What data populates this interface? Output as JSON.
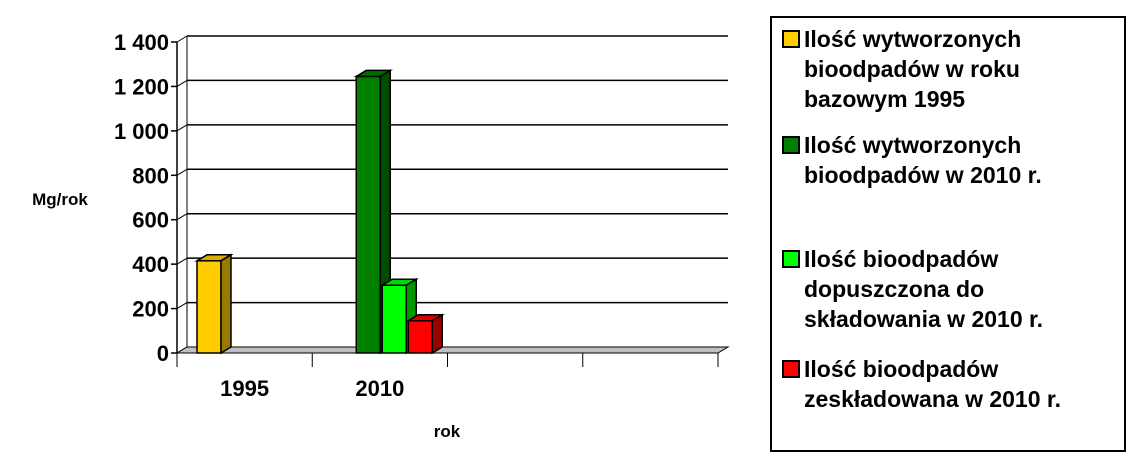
{
  "chart_data": {
    "type": "bar",
    "title": "",
    "xlabel": "rok",
    "ylabel": "Mg/rok",
    "ylim": [
      0,
      1400
    ],
    "yticks": [
      0,
      200,
      400,
      600,
      800,
      1000,
      1200,
      1400
    ],
    "ytick_labels": [
      "0",
      "200",
      "400",
      "600",
      "800",
      "1 000",
      "1 200",
      "1 400"
    ],
    "categories": [
      "1995",
      "2010",
      "",
      ""
    ],
    "grid": true,
    "legend_position": "right",
    "series": [
      {
        "name": "Ilość wytworzonych bioodpadów w roku bazowym 1995",
        "color": "#ffcc00",
        "values": [
          415,
          null,
          null,
          null
        ]
      },
      {
        "name": "Ilość wytworzonych bioodpadów w 2010 r.",
        "color": "#008000",
        "values": [
          null,
          1245,
          null,
          null
        ]
      },
      {
        "name": "Ilość bioodpadów dopuszczona do składowania w 2010 r.",
        "color": "#00ff00",
        "values": [
          null,
          305,
          null,
          null
        ]
      },
      {
        "name": "Ilość bioodpadów zeskładowana w 2010 r.",
        "color": "#ff0000",
        "values": [
          null,
          145,
          null,
          null
        ]
      }
    ]
  },
  "legend": {
    "items": [
      {
        "label": "Ilość wytworzonych\nbioodpadów w roku\nbazowym 1995",
        "color": "#ffcc00"
      },
      {
        "label": "Ilość wytworzonych\nbioodpadów w 2010 r.",
        "color": "#008000"
      },
      {
        "label": "Ilość bioodpadów\ndopuszczona do\nskładowania w 2010 r.",
        "color": "#00ff00"
      },
      {
        "label": "Ilość bioodpadów\nzeskładowana w 2010 r.",
        "color": "#ff0000"
      }
    ]
  }
}
